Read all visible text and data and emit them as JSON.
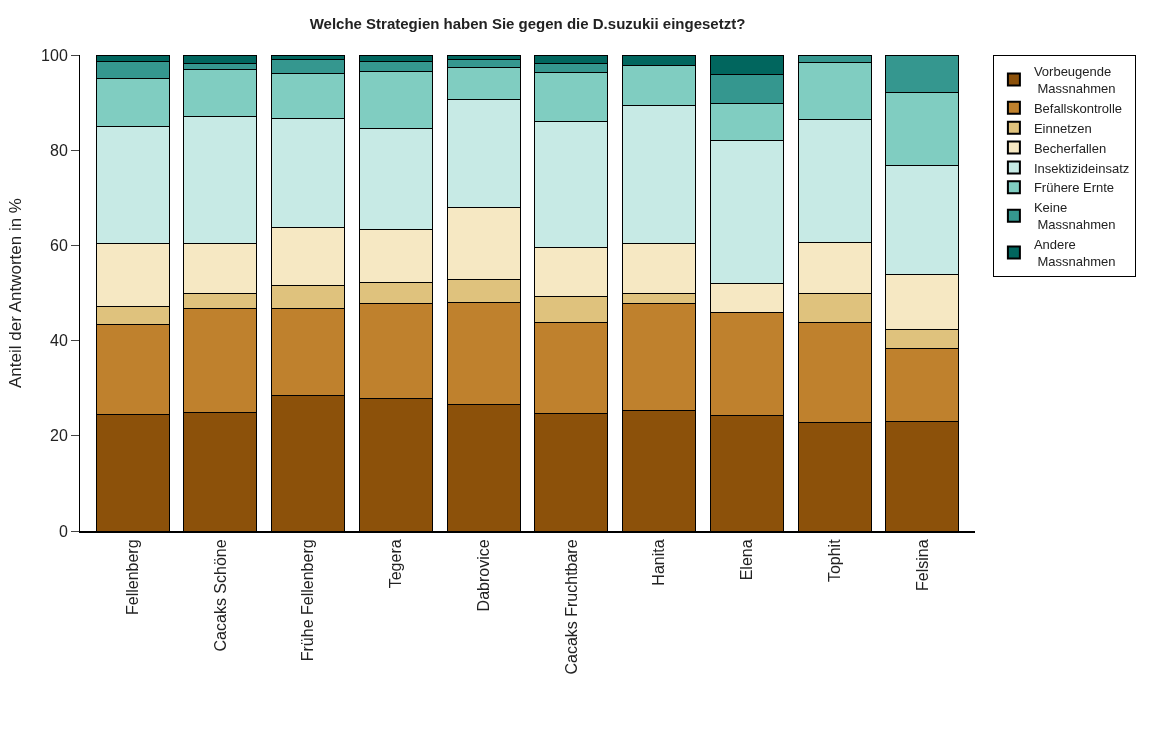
{
  "chart_data": {
    "type": "bar",
    "stacked": true,
    "title": "Welche Strategien haben Sie gegen die D.suzukii eingesetzt?",
    "ylabel": "Anteil der Antworten in %",
    "categories": [
      "Fellenberg",
      "Cacaks Schöne",
      "Frühe Fellenberg",
      "Tegera",
      "Dabrovice",
      "Cacaks Fruchtbare",
      "Hanita",
      "Elena",
      "Tophit",
      "Felsina"
    ],
    "series": [
      {
        "name": "Vorbeugende\nMassnahmen",
        "color": "#8c510a",
        "values": [
          24.4,
          24.8,
          28.4,
          27.8,
          26.5,
          24.6,
          25.3,
          24.2,
          22.9,
          23.1
        ]
      },
      {
        "name": "Befallskontrolle",
        "color": "#bf812d",
        "values": [
          19.0,
          22.0,
          18.4,
          20.0,
          21.6,
          19.3,
          22.5,
          21.8,
          21.0,
          15.3
        ]
      },
      {
        "name": "Einnetzen",
        "color": "#dfc27d",
        "values": [
          3.8,
          3.0,
          4.7,
          4.5,
          4.7,
          5.3,
          2.2,
          0,
          6.0,
          4.0
        ]
      },
      {
        "name": "Becherfallen",
        "color": "#f6e8c3",
        "values": [
          13.2,
          10.6,
          12.3,
          11.0,
          15.1,
          10.4,
          10.5,
          6.0,
          10.8,
          11.4
        ]
      },
      {
        "name": "Insektizideinsatz",
        "color": "#c7eae5",
        "values": [
          24.6,
          26.7,
          22.9,
          21.2,
          22.8,
          26.4,
          28.9,
          30.1,
          25.7,
          23.0
        ]
      },
      {
        "name": "Frühere Ernte",
        "color": "#80cdc1",
        "values": [
          10.1,
          9.9,
          9.5,
          12.1,
          6.7,
          10.3,
          8.5,
          7.7,
          12.1,
          15.4
        ]
      },
      {
        "name": "Keine\nMassnahmen",
        "color": "#35978f",
        "values": [
          3.6,
          1.3,
          2.8,
          2.1,
          1.6,
          1.9,
          0,
          6.1,
          1.5,
          7.8
        ]
      },
      {
        "name": "Andere\nMassnahmen",
        "color": "#01665e",
        "values": [
          1.3,
          1.7,
          1.0,
          1.3,
          1.0,
          1.8,
          2.1,
          4.1,
          0,
          0
        ]
      }
    ],
    "ylim": [
      0,
      100
    ],
    "yticks": [
      0,
      20,
      40,
      60,
      80,
      100
    ],
    "legend": "top right"
  }
}
